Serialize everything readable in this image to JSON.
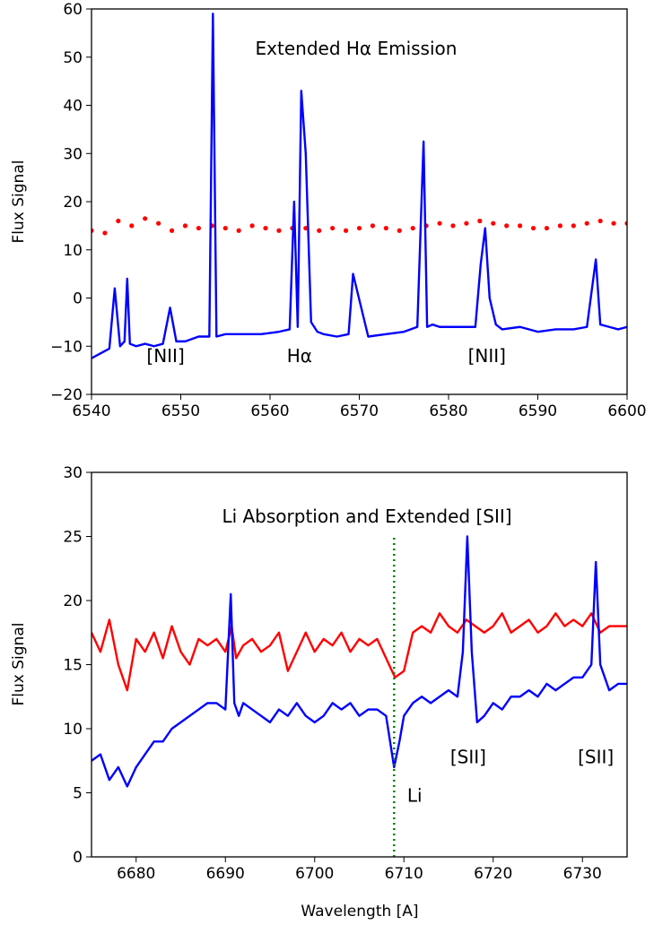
{
  "chart_data": [
    {
      "type": "line",
      "title": "Extended Hα Emission",
      "xlabel": "",
      "ylabel": "Flux Signal",
      "xlim": [
        6540,
        6600
      ],
      "ylim": [
        -20,
        60
      ],
      "xticks": [
        6540,
        6550,
        6560,
        6570,
        6580,
        6590,
        6600
      ],
      "yticks": [
        -20,
        -10,
        0,
        10,
        20,
        30,
        40,
        50,
        60
      ],
      "annotations": [
        {
          "text": "[NII]",
          "x": 6548.3,
          "y": -13.3
        },
        {
          "text": "Hα",
          "x": 6563.3,
          "y": -13.3
        },
        {
          "text": "[NII]",
          "x": 6584.3,
          "y": -13.3
        }
      ],
      "grid": false,
      "series": [
        {
          "style": "dots",
          "color": "#ff0000",
          "x": [
            6540,
            6541.5,
            6543,
            6544.5,
            6546,
            6547.5,
            6549,
            6550.5,
            6552,
            6553.5,
            6555,
            6556.5,
            6558,
            6559.5,
            6561,
            6562.5,
            6564,
            6565.5,
            6567,
            6568.5,
            6570,
            6571.5,
            6573,
            6574.5,
            6576,
            6577.5,
            6579,
            6580.5,
            6582,
            6583.5,
            6585,
            6586.5,
            6588,
            6589.5,
            6591,
            6592.5,
            6594,
            6595.5,
            6597,
            6598.5,
            6600
          ],
          "y": [
            14,
            13.5,
            16,
            15,
            16.5,
            15.5,
            14,
            15,
            14.5,
            15,
            14.5,
            14,
            15,
            14.5,
            14,
            14.5,
            14.5,
            14,
            14.5,
            14,
            14.5,
            15,
            14.5,
            14,
            14.5,
            15,
            15.5,
            15,
            15.5,
            16,
            15.5,
            15,
            15,
            14.5,
            14.5,
            15,
            15,
            15.5,
            16,
            15.5,
            15.5
          ]
        },
        {
          "style": "line",
          "color": "#0000ff",
          "x": [
            6540,
            6541,
            6542,
            6542.6,
            6543.2,
            6543.7,
            6544,
            6544.3,
            6545,
            6546,
            6547,
            6548,
            6548.8,
            6549.5,
            6550.5,
            6552,
            6553.2,
            6553.6,
            6554,
            6555,
            6557,
            6559,
            6561,
            6562.2,
            6562.7,
            6563.1,
            6563.5,
            6564,
            6564.6,
            6565.3,
            6566,
            6567.5,
            6568.8,
            6569.3,
            6571,
            6573,
            6575,
            6576.5,
            6577.2,
            6577.6,
            6578.2,
            6579,
            6581,
            6583,
            6583.6,
            6584.1,
            6584.6,
            6585.3,
            6586,
            6588,
            6590,
            6592,
            6594,
            6595.5,
            6596.5,
            6597,
            6598,
            6599,
            6600
          ],
          "y": [
            -12.5,
            -11.5,
            -10.5,
            2,
            -10,
            -9,
            4,
            -9.5,
            -10,
            -9.5,
            -10,
            -9.5,
            -2,
            -9,
            -9,
            -8,
            -8,
            59,
            -8,
            -7.5,
            -7.5,
            -7.5,
            -7,
            -6.5,
            20,
            -6,
            43,
            30,
            -5,
            -7,
            -7.5,
            -8,
            -7.5,
            5,
            -8,
            -7.5,
            -7,
            -6,
            32.5,
            -6,
            -5.5,
            -6,
            -6,
            -6,
            7,
            14.5,
            0,
            -5.5,
            -6.5,
            -6,
            -7,
            -6.5,
            -6.5,
            -6,
            8,
            -5.5,
            -6,
            -6.5,
            -6
          ]
        }
      ]
    },
    {
      "type": "line",
      "title": "Li Absorption and Extended [SII]",
      "xlabel": "Wavelength [A]",
      "ylabel": "Flux Signal",
      "xlim": [
        6675,
        6735
      ],
      "ylim": [
        0,
        30
      ],
      "xticks": [
        6680,
        6690,
        6700,
        6710,
        6720,
        6730
      ],
      "yticks": [
        0,
        5,
        10,
        15,
        20,
        25,
        30
      ],
      "reference_line": {
        "x": 6708.9,
        "y_range": [
          0,
          25
        ],
        "style": "dotted",
        "color": "#008000"
      },
      "annotations": [
        {
          "text": "Li",
          "x": 6711.2,
          "y": 4.3
        },
        {
          "text": "[SII]",
          "x": 6717.2,
          "y": 7.3
        },
        {
          "text": "[SII]",
          "x": 6731.5,
          "y": 7.3
        }
      ],
      "grid": false,
      "series": [
        {
          "style": "line",
          "color": "#ff0000",
          "x": [
            6675,
            6676,
            6677,
            6678,
            6679,
            6680,
            6681,
            6682,
            6683,
            6684,
            6685,
            6686,
            6687,
            6688,
            6689,
            6690,
            6690.7,
            6691.2,
            6692,
            6693,
            6694,
            6695,
            6696,
            6697,
            6698,
            6699,
            6700,
            6701,
            6702,
            6703,
            6704,
            6705,
            6706,
            6707,
            6708,
            6709,
            6710,
            6711,
            6712,
            6713,
            6714,
            6715,
            6716,
            6717,
            6718,
            6719,
            6720,
            6721,
            6722,
            6723,
            6724,
            6725,
            6726,
            6727,
            6728,
            6729,
            6730,
            6731,
            6732,
            6733,
            6734,
            6735
          ],
          "y": [
            17.5,
            16,
            18.5,
            15,
            13,
            17,
            16,
            17.5,
            15.5,
            18,
            16,
            15,
            17,
            16.5,
            17,
            16,
            18,
            15.5,
            16.5,
            17,
            16,
            16.5,
            17.5,
            14.5,
            16,
            17.5,
            16,
            17,
            16.5,
            17.5,
            16,
            17,
            16.5,
            17,
            15.5,
            14,
            14.5,
            17.5,
            18,
            17.5,
            19,
            18,
            17.5,
            18.5,
            18,
            17.5,
            18,
            19,
            17.5,
            18,
            18.5,
            17.5,
            18,
            19,
            18,
            18.5,
            18,
            19,
            17.5,
            18,
            18,
            18
          ]
        },
        {
          "style": "line",
          "color": "#0000ff",
          "x": [
            6675,
            6676,
            6677,
            6678,
            6679,
            6680,
            6681,
            6682,
            6683,
            6684,
            6685,
            6686,
            6687,
            6688,
            6689,
            6690,
            6690.6,
            6691,
            6691.5,
            6692,
            6693,
            6694,
            6695,
            6696,
            6697,
            6698,
            6699,
            6700,
            6701,
            6702,
            6703,
            6704,
            6705,
            6706,
            6707,
            6708,
            6708.9,
            6709.5,
            6710,
            6711,
            6712,
            6713,
            6714,
            6715,
            6716,
            6716.6,
            6717.1,
            6717.6,
            6718.2,
            6719,
            6720,
            6721,
            6722,
            6723,
            6724,
            6725,
            6726,
            6727,
            6728,
            6729,
            6730,
            6731,
            6731.5,
            6732,
            6733,
            6734,
            6735
          ],
          "y": [
            7.5,
            8,
            6,
            7,
            5.5,
            7,
            8,
            9,
            9,
            10,
            10.5,
            11,
            11.5,
            12,
            12,
            11.5,
            20.5,
            12,
            11,
            12,
            11.5,
            11,
            10.5,
            11.5,
            11,
            12,
            11,
            10.5,
            11,
            12,
            11.5,
            12,
            11,
            11.5,
            11.5,
            11,
            7,
            9,
            11,
            12,
            12.5,
            12,
            12.5,
            13,
            12.5,
            16,
            25,
            16,
            10.5,
            11,
            12,
            11.5,
            12.5,
            12.5,
            13,
            12.5,
            13.5,
            13,
            13.5,
            14,
            14,
            15,
            23,
            15,
            13,
            13.5,
            13.5
          ]
        }
      ]
    }
  ]
}
